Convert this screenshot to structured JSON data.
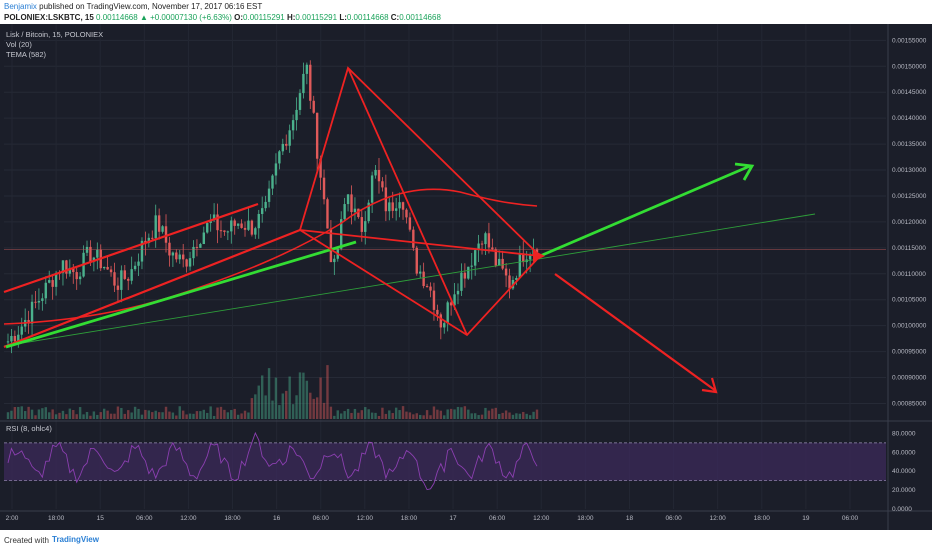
{
  "header": {
    "author": "Benjamix",
    "published": "published on TradingView.com, November 17, 2017 06:16 EST",
    "symbol": "POLONIEX:LSKBTC, 15",
    "last": "0.00114668",
    "change": "▲ +0.00007130 (+6.63%)",
    "o_label": "O:",
    "o": "0.00115291",
    "h_label": "H:",
    "h": "0.00115291",
    "l_label": "L:",
    "l": "0.00114668",
    "c_label": "C:",
    "c": "0.00114668"
  },
  "legend": {
    "title": "Lisk / Bitcoin, 15, POLONIEX",
    "vol": "Vol (20)",
    "tema": "TEMA (582)"
  },
  "rsi_label": "RSI (8, ohlc4)",
  "footer": {
    "created": "Created with",
    "logo": "TradingView"
  },
  "colors": {
    "background": "#1b1e29",
    "up": "#4bb18d",
    "down": "#e05a5a",
    "drawing_red": "#ee2222",
    "drawing_green": "#33dd33",
    "rsi": "#8b3fb0",
    "rsi_band": "#3d2a5c"
  },
  "chart_data": {
    "type": "candlestick",
    "price_ticks": [
      "0.00155000",
      "0.00150000",
      "0.00145000",
      "0.00140000",
      "0.00135000",
      "0.00130000",
      "0.00125000",
      "0.00120000",
      "0.00115000",
      "0.00110000",
      "0.00105000",
      "0.00100000",
      "0.00095000",
      "0.00090000",
      "0.00085000"
    ],
    "rsi_ticks": [
      "80.0000",
      "60.0000",
      "40.0000",
      "20.0000",
      "0.0000"
    ],
    "time_ticks": [
      "2:00",
      "18:00",
      "15",
      "06:00",
      "12:00",
      "18:00",
      "16",
      "06:00",
      "12:00",
      "18:00",
      "17",
      "06:00",
      "12:00",
      "18:00",
      "18",
      "06:00",
      "12:00",
      "18:00",
      "19",
      "06:00"
    ],
    "price_line": 0.00114668,
    "price_range": [
      0.00082,
      0.00157
    ],
    "rsi_range": [
      0,
      90
    ],
    "close_path": [
      0.00097,
      0.001,
      0.00104,
      0.00108,
      0.00112,
      0.0011,
      0.00114,
      0.00112,
      0.00108,
      0.0011,
      0.00116,
      0.0012,
      0.00114,
      0.00112,
      0.00117,
      0.0012,
      0.00118,
      0.0012,
      0.00119,
      0.00122,
      0.00133,
      0.0014,
      0.0015,
      0.0013,
      0.0011,
      0.00126,
      0.00118,
      0.0013,
      0.00122,
      0.00126,
      0.00112,
      0.00108,
      0.001,
      0.00108,
      0.00112,
      0.00118,
      0.00112,
      0.00108,
      0.00114,
      0.00116
    ]
  }
}
